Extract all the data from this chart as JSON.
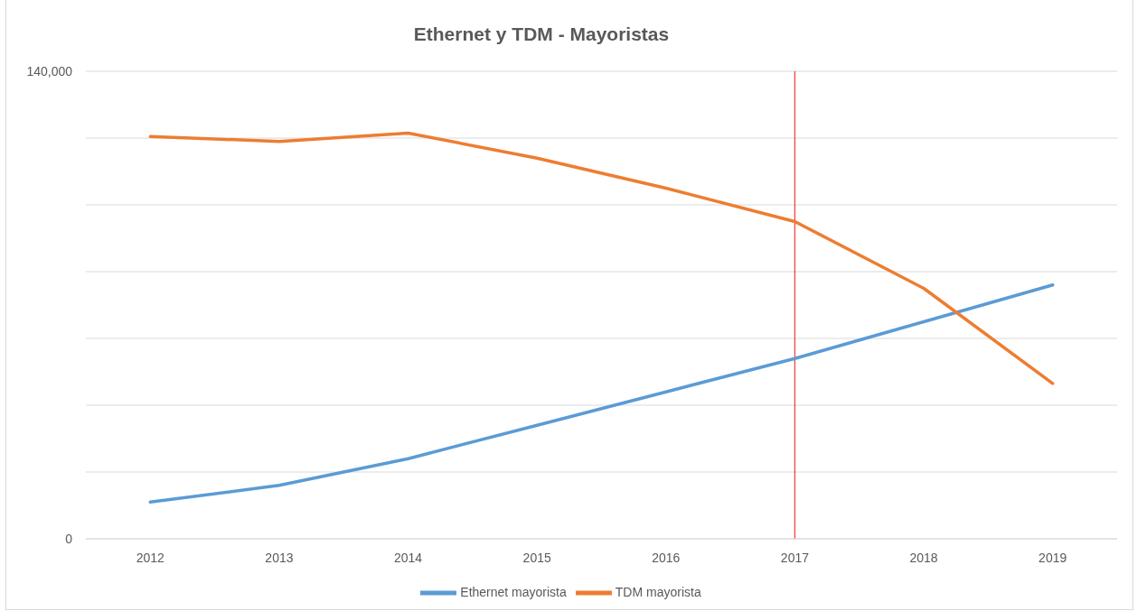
{
  "chart_data": {
    "type": "line",
    "title": "Ethernet y TDM - Mayoristas",
    "categories": [
      "2012",
      "2013",
      "2014",
      "2015",
      "2016",
      "2017",
      "2018",
      "2019"
    ],
    "series": [
      {
        "name": "Ethernet mayorista",
        "color": "#5b9bd5",
        "values": [
          11000,
          16000,
          24000,
          34000,
          44000,
          54000,
          65000,
          76000
        ]
      },
      {
        "name": "TDM mayorista",
        "color": "#ed7d31",
        "values": [
          120500,
          119000,
          121500,
          114000,
          105000,
          95000,
          75000,
          46500
        ]
      }
    ],
    "ylim": [
      0,
      140000
    ],
    "yticks": [
      0,
      {
        "value": 20000,
        "label": null
      },
      {
        "value": 40000,
        "label": null
      },
      {
        "value": 60000,
        "label": null
      },
      {
        "value": 80000,
        "label": null
      },
      {
        "value": 100000,
        "label": null
      },
      {
        "value": 120000,
        "label": null
      },
      {
        "value": 140000,
        "label": "140,000"
      }
    ],
    "ref_lines": [
      {
        "axis": "x",
        "value": "2017",
        "color": "#f04444"
      }
    ],
    "grid": "y",
    "legend": "bottom",
    "marker": "none",
    "line_style": "solid"
  }
}
